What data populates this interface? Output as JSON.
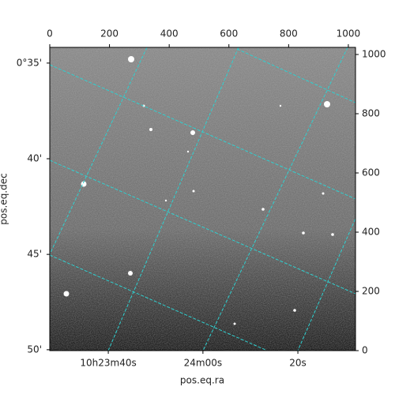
{
  "chart_data": {
    "type": "image",
    "xlabel": "pos.eq.ra",
    "ylabel": "pos.eq.dec",
    "xlim": [
      0,
      1024
    ],
    "ylim": [
      0,
      1024
    ],
    "xticks": [
      0,
      200,
      400,
      600,
      800,
      1000
    ],
    "yticks": [
      0,
      200,
      400,
      600,
      800,
      1000
    ],
    "ra_ticks": [
      {
        "value": 196,
        "label": "10h23m40s"
      },
      {
        "value": 513,
        "label": "24m00s"
      },
      {
        "value": 831,
        "label": "20s"
      }
    ],
    "dec_ticks": [
      {
        "value": 971,
        "label": "0°35'"
      },
      {
        "value": 648,
        "label": "40'"
      },
      {
        "value": 325,
        "label": "45'"
      },
      {
        "value": 3,
        "label": "50'"
      }
    ]
  }
}
